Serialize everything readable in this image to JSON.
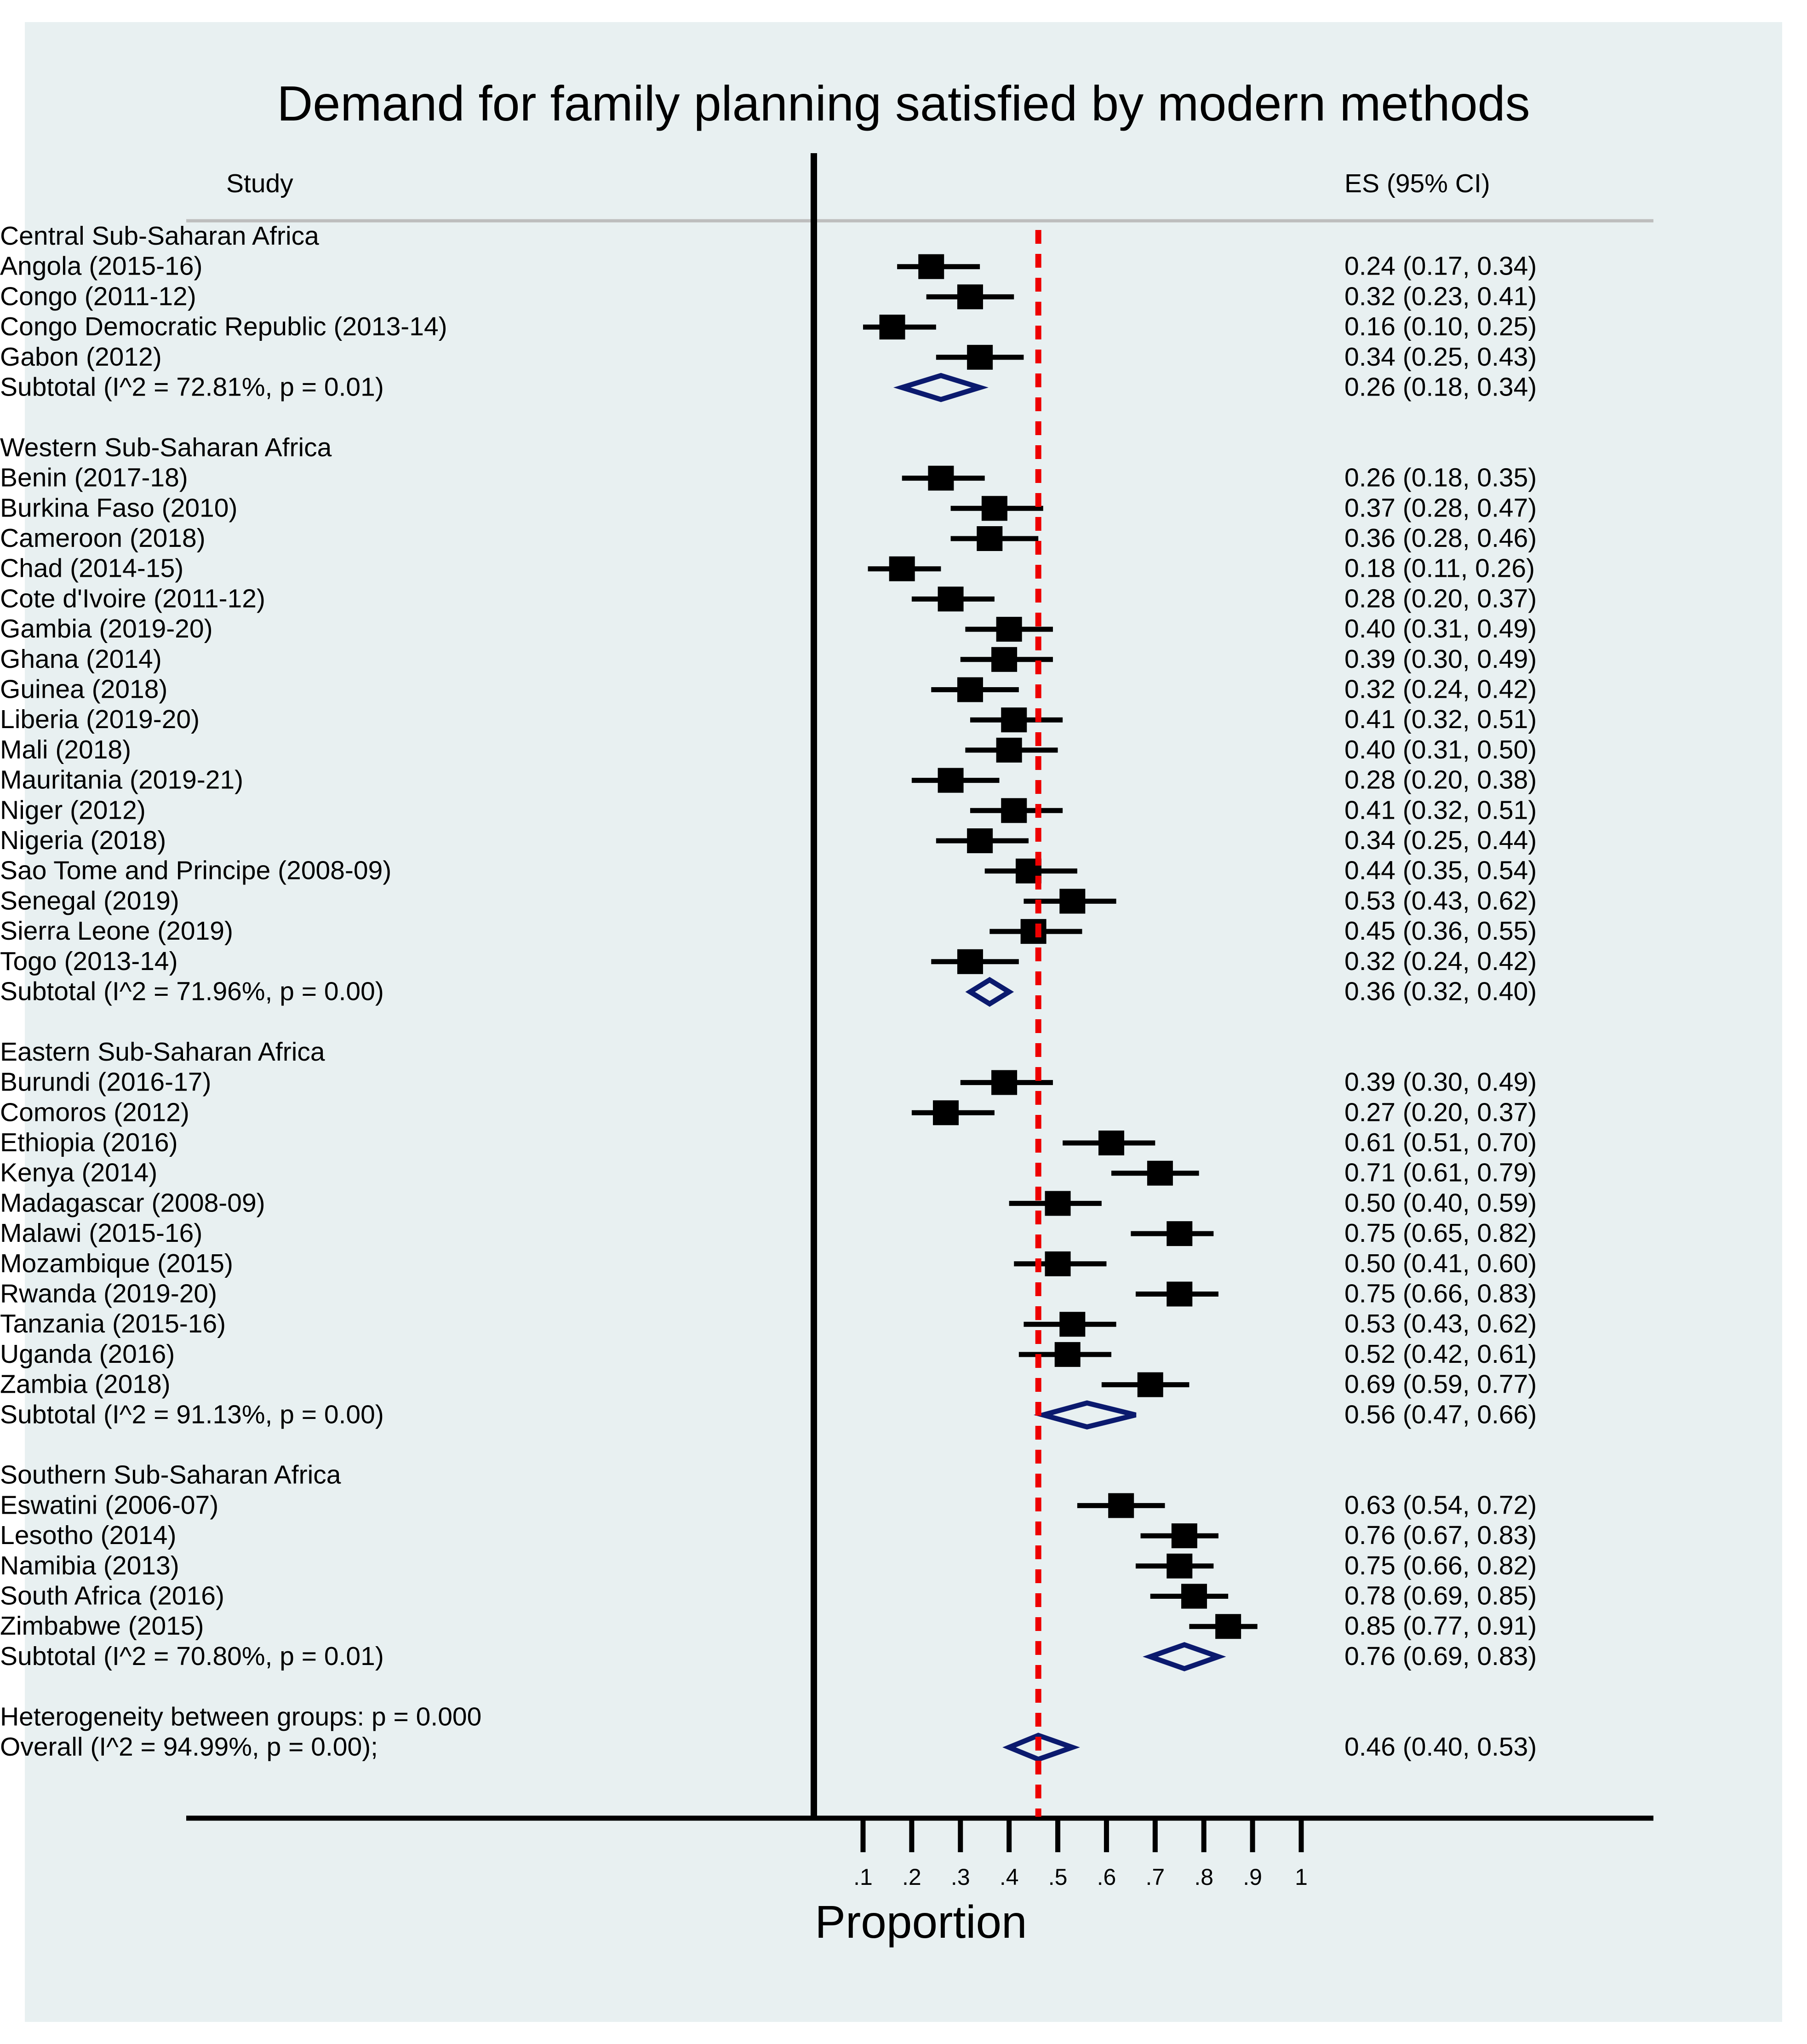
{
  "colors": {
    "panel_bg": "#e8f0f1",
    "title": "#0000ee",
    "marker": "#000000",
    "diamond": "#0b1a6e",
    "ref_line": "#ee0000",
    "header_rule": "#bdbdbd"
  },
  "chart_data": {
    "type": "forest",
    "title": "Demand for family planning satisfied by modern methods",
    "header_study": "Study",
    "header_es": "ES (95% CI)",
    "xlabel": "Proportion",
    "xlim": [
      0.1,
      1.0
    ],
    "ticks": [
      0.1,
      0.2,
      0.3,
      0.4,
      0.5,
      0.6,
      0.7,
      0.8,
      0.9,
      1.0
    ],
    "tick_labels": [
      ".1",
      ".2",
      ".3",
      ".4",
      ".5",
      ".6",
      ".7",
      ".8",
      ".9",
      "1"
    ],
    "reference_line": 0.46,
    "groups": [
      {
        "name": "Central Sub-Saharan Africa",
        "studies": [
          {
            "label": "Angola (2015-16)",
            "es": 0.24,
            "lo": 0.17,
            "hi": 0.34,
            "text": "0.24 (0.17, 0.34)"
          },
          {
            "label": "Congo (2011-12)",
            "es": 0.32,
            "lo": 0.23,
            "hi": 0.41,
            "text": "0.32 (0.23, 0.41)"
          },
          {
            "label": "Congo Democratic Republic (2013-14)",
            "es": 0.16,
            "lo": 0.1,
            "hi": 0.25,
            "text": "0.16 (0.10, 0.25)"
          },
          {
            "label": "Gabon (2012)",
            "es": 0.34,
            "lo": 0.25,
            "hi": 0.43,
            "text": "0.34 (0.25, 0.43)"
          }
        ],
        "subtotal": {
          "label": "Subtotal  (I^2 = 72.81%, p = 0.01)",
          "es": 0.26,
          "lo": 0.18,
          "hi": 0.34,
          "text": "0.26 (0.18, 0.34)"
        }
      },
      {
        "name": "Western Sub-Saharan Africa",
        "studies": [
          {
            "label": "Benin (2017-18)",
            "es": 0.26,
            "lo": 0.18,
            "hi": 0.35,
            "text": "0.26 (0.18, 0.35)"
          },
          {
            "label": "Burkina Faso (2010)",
            "es": 0.37,
            "lo": 0.28,
            "hi": 0.47,
            "text": "0.37 (0.28, 0.47)"
          },
          {
            "label": "Cameroon (2018)",
            "es": 0.36,
            "lo": 0.28,
            "hi": 0.46,
            "text": "0.36 (0.28, 0.46)"
          },
          {
            "label": "Chad (2014-15)",
            "es": 0.18,
            "lo": 0.11,
            "hi": 0.26,
            "text": "0.18 (0.11, 0.26)"
          },
          {
            "label": "Cote d'Ivoire (2011-12)",
            "es": 0.28,
            "lo": 0.2,
            "hi": 0.37,
            "text": "0.28 (0.20, 0.37)"
          },
          {
            "label": "Gambia (2019-20)",
            "es": 0.4,
            "lo": 0.31,
            "hi": 0.49,
            "text": "0.40 (0.31, 0.49)"
          },
          {
            "label": "Ghana (2014)",
            "es": 0.39,
            "lo": 0.3,
            "hi": 0.49,
            "text": "0.39 (0.30, 0.49)"
          },
          {
            "label": "Guinea (2018)",
            "es": 0.32,
            "lo": 0.24,
            "hi": 0.42,
            "text": "0.32 (0.24, 0.42)"
          },
          {
            "label": "Liberia (2019-20)",
            "es": 0.41,
            "lo": 0.32,
            "hi": 0.51,
            "text": "0.41 (0.32, 0.51)"
          },
          {
            "label": "Mali (2018)",
            "es": 0.4,
            "lo": 0.31,
            "hi": 0.5,
            "text": "0.40 (0.31, 0.50)"
          },
          {
            "label": "Mauritania (2019-21)",
            "es": 0.28,
            "lo": 0.2,
            "hi": 0.38,
            "text": "0.28 (0.20, 0.38)"
          },
          {
            "label": "Niger (2012)",
            "es": 0.41,
            "lo": 0.32,
            "hi": 0.51,
            "text": "0.41 (0.32, 0.51)"
          },
          {
            "label": "Nigeria (2018)",
            "es": 0.34,
            "lo": 0.25,
            "hi": 0.44,
            "text": "0.34 (0.25, 0.44)"
          },
          {
            "label": "Sao Tome and Principe (2008-09)",
            "es": 0.44,
            "lo": 0.35,
            "hi": 0.54,
            "text": "0.44 (0.35, 0.54)"
          },
          {
            "label": "Senegal (2019)",
            "es": 0.53,
            "lo": 0.43,
            "hi": 0.62,
            "text": "0.53 (0.43, 0.62)"
          },
          {
            "label": "Sierra Leone (2019)",
            "es": 0.45,
            "lo": 0.36,
            "hi": 0.55,
            "text": "0.45 (0.36, 0.55)"
          },
          {
            "label": "Togo (2013-14)",
            "es": 0.32,
            "lo": 0.24,
            "hi": 0.42,
            "text": "0.32 (0.24, 0.42)"
          }
        ],
        "subtotal": {
          "label": "Subtotal  (I^2 = 71.96%, p = 0.00)",
          "es": 0.36,
          "lo": 0.32,
          "hi": 0.4,
          "text": "0.36 (0.32, 0.40)"
        }
      },
      {
        "name": "Eastern Sub-Saharan Africa",
        "studies": [
          {
            "label": "Burundi (2016-17)",
            "es": 0.39,
            "lo": 0.3,
            "hi": 0.49,
            "text": "0.39 (0.30, 0.49)"
          },
          {
            "label": "Comoros (2012)",
            "es": 0.27,
            "lo": 0.2,
            "hi": 0.37,
            "text": "0.27 (0.20, 0.37)"
          },
          {
            "label": "Ethiopia (2016)",
            "es": 0.61,
            "lo": 0.51,
            "hi": 0.7,
            "text": "0.61 (0.51, 0.70)"
          },
          {
            "label": "Kenya (2014)",
            "es": 0.71,
            "lo": 0.61,
            "hi": 0.79,
            "text": "0.71 (0.61, 0.79)"
          },
          {
            "label": "Madagascar (2008-09)",
            "es": 0.5,
            "lo": 0.4,
            "hi": 0.59,
            "text": "0.50 (0.40, 0.59)"
          },
          {
            "label": "Malawi (2015-16)",
            "es": 0.75,
            "lo": 0.65,
            "hi": 0.82,
            "text": "0.75 (0.65, 0.82)"
          },
          {
            "label": "Mozambique (2015)",
            "es": 0.5,
            "lo": 0.41,
            "hi": 0.6,
            "text": "0.50 (0.41, 0.60)"
          },
          {
            "label": "Rwanda (2019-20)",
            "es": 0.75,
            "lo": 0.66,
            "hi": 0.83,
            "text": "0.75 (0.66, 0.83)"
          },
          {
            "label": "Tanzania (2015-16)",
            "es": 0.53,
            "lo": 0.43,
            "hi": 0.62,
            "text": "0.53 (0.43, 0.62)"
          },
          {
            "label": "Uganda (2016)",
            "es": 0.52,
            "lo": 0.42,
            "hi": 0.61,
            "text": "0.52 (0.42, 0.61)"
          },
          {
            "label": "Zambia (2018)",
            "es": 0.69,
            "lo": 0.59,
            "hi": 0.77,
            "text": "0.69 (0.59, 0.77)"
          }
        ],
        "subtotal": {
          "label": "Subtotal  (I^2 = 91.13%, p = 0.00)",
          "es": 0.56,
          "lo": 0.47,
          "hi": 0.66,
          "text": "0.56 (0.47, 0.66)"
        }
      },
      {
        "name": "Southern Sub-Saharan Africa",
        "studies": [
          {
            "label": "Eswatini (2006-07)",
            "es": 0.63,
            "lo": 0.54,
            "hi": 0.72,
            "text": "0.63 (0.54, 0.72)"
          },
          {
            "label": "Lesotho (2014)",
            "es": 0.76,
            "lo": 0.67,
            "hi": 0.83,
            "text": "0.76 (0.67, 0.83)"
          },
          {
            "label": "Namibia (2013)",
            "es": 0.75,
            "lo": 0.66,
            "hi": 0.82,
            "text": "0.75 (0.66, 0.82)"
          },
          {
            "label": "South Africa (2016)",
            "es": 0.78,
            "lo": 0.69,
            "hi": 0.85,
            "text": "0.78 (0.69, 0.85)"
          },
          {
            "label": "Zimbabwe (2015)",
            "es": 0.85,
            "lo": 0.77,
            "hi": 0.91,
            "text": "0.85 (0.77, 0.91)"
          }
        ],
        "subtotal": {
          "label": "Subtotal  (I^2 = 70.80%, p = 0.01)",
          "es": 0.76,
          "lo": 0.69,
          "hi": 0.83,
          "text": "0.76 (0.69, 0.83)"
        }
      }
    ],
    "heterogeneity_label": "Heterogeneity between groups: p = 0.000",
    "overall": {
      "label": "Overall  (I^2 = 94.99%, p = 0.00);",
      "es": 0.46,
      "lo": 0.4,
      "hi": 0.53,
      "text": "0.46 (0.40, 0.53)"
    }
  }
}
